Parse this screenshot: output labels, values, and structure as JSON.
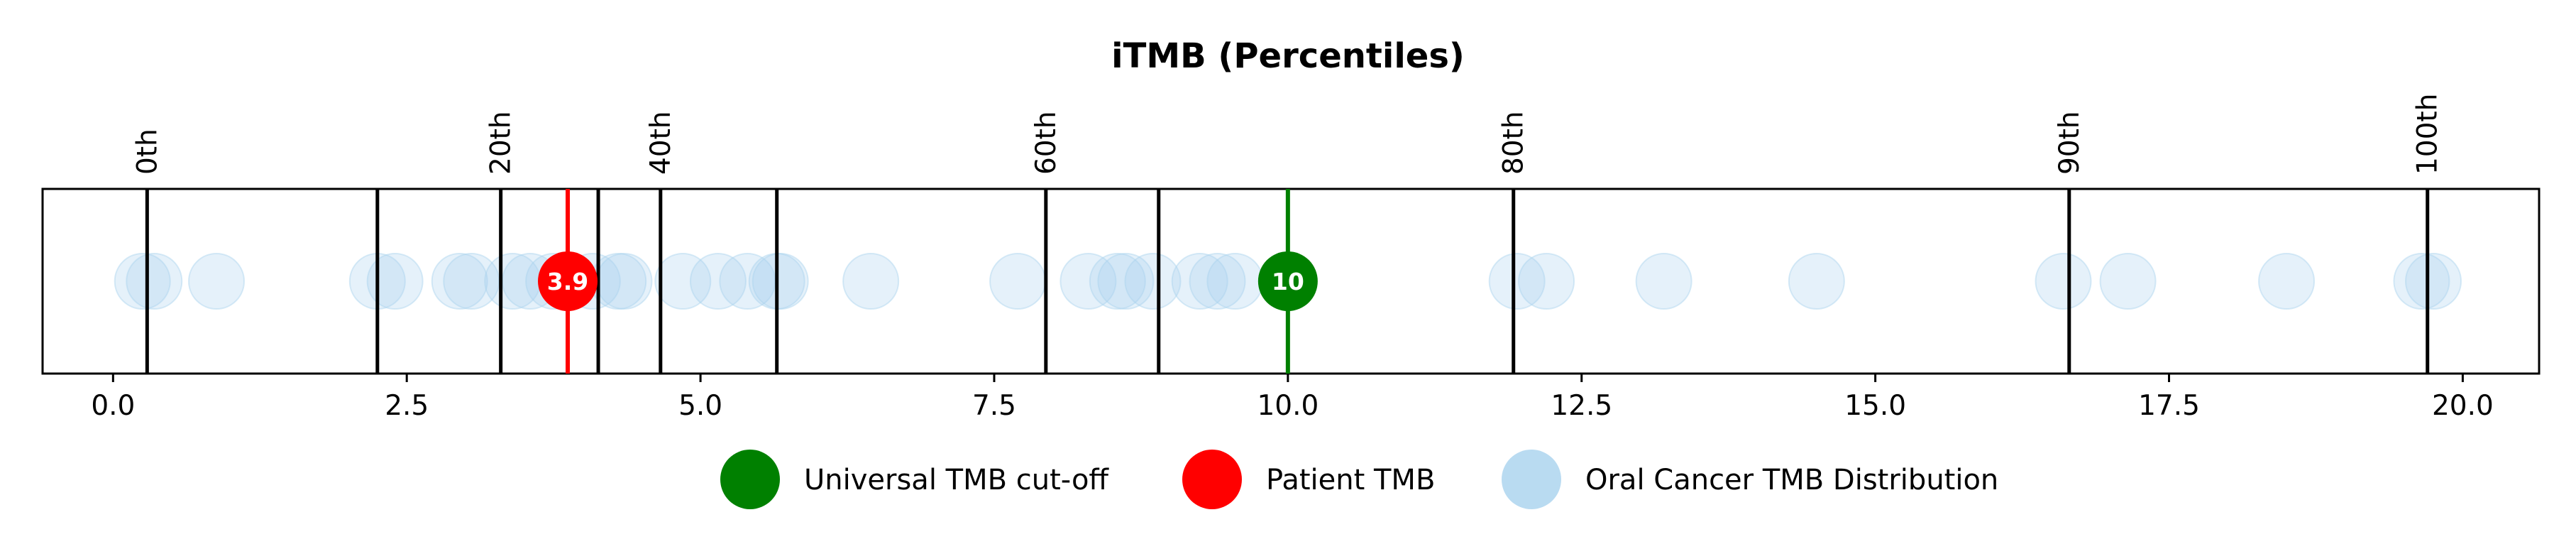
{
  "chart_data": {
    "type": "scatter",
    "title": "iTMB (Percentiles)",
    "xlabel": "",
    "ylabel": "",
    "xlim": [
      -0.6,
      20.65
    ],
    "x_ticks": [
      0.0,
      2.5,
      5.0,
      7.5,
      10.0,
      12.5,
      15.0,
      17.5,
      20.0
    ],
    "x_tick_labels": [
      "0.0",
      "2.5",
      "5.0",
      "7.5",
      "10.0",
      "12.5",
      "15.0",
      "17.5",
      "20.0"
    ],
    "grid": false,
    "legend_position": "bottom-center",
    "percentile_lines": [
      {
        "x": 0.29,
        "label": "0th"
      },
      {
        "x": 2.25,
        "label": ""
      },
      {
        "x": 3.3,
        "label": "20th"
      },
      {
        "x": 4.13,
        "label": ""
      },
      {
        "x": 4.66,
        "label": "40th"
      },
      {
        "x": 5.65,
        "label": ""
      },
      {
        "x": 7.94,
        "label": "60th"
      },
      {
        "x": 8.9,
        "label": ""
      },
      {
        "x": 11.92,
        "label": "80th"
      },
      {
        "x": 16.65,
        "label": "90th"
      },
      {
        "x": 19.7,
        "label": "100th"
      }
    ],
    "series": [
      {
        "name": "Oral Cancer TMB Distribution",
        "color": "#a8d2ee",
        "x": [
          0.25,
          0.35,
          0.88,
          2.25,
          2.4,
          2.95,
          3.05,
          3.4,
          3.55,
          3.75,
          4.08,
          4.3,
          4.35,
          4.85,
          5.15,
          5.4,
          5.65,
          5.68,
          6.45,
          7.7,
          8.3,
          8.55,
          8.62,
          8.85,
          9.25,
          9.4,
          9.55,
          11.95,
          12.2,
          13.2,
          14.5,
          16.6,
          17.15,
          18.5,
          19.65,
          19.75
        ]
      },
      {
        "name": "Patient TMB",
        "color": "#ff0000",
        "x": [
          3.87
        ],
        "label": "3.9"
      },
      {
        "name": "Universal TMB cut-off",
        "color": "#008000",
        "x": [
          10.0
        ],
        "label": "10"
      }
    ],
    "legend": [
      {
        "label": "Universal TMB cut-off",
        "color": "#008000",
        "alpha": 1.0
      },
      {
        "label": "Patient TMB",
        "color": "#ff0000",
        "alpha": 1.0
      },
      {
        "label": "Oral Cancer TMB Distribution",
        "color": "#a8d2ee",
        "alpha": 0.8
      }
    ]
  }
}
